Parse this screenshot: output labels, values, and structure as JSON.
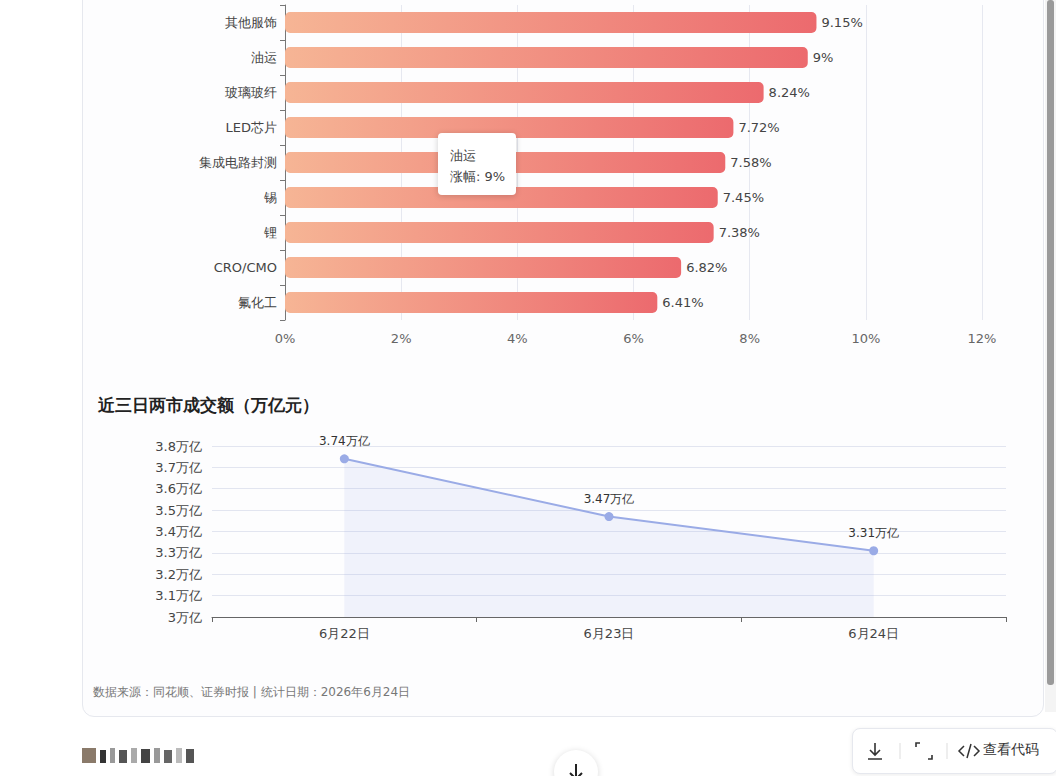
{
  "chart_data": [
    {
      "type": "bar",
      "orientation": "horizontal",
      "categories": [
        "其他服饰",
        "油运",
        "玻璃玻纤",
        "LED芯片",
        "集成电路封测",
        "锡",
        "锂",
        "CRO/CMO",
        "氟化工"
      ],
      "values": [
        9.15,
        9,
        8.24,
        7.72,
        7.58,
        7.45,
        7.38,
        6.82,
        6.41
      ],
      "value_labels": [
        "9.15%",
        "9%",
        "8.24%",
        "7.72%",
        "7.58%",
        "7.45%",
        "7.38%",
        "6.82%",
        "6.41%"
      ],
      "color": "#ec6a6e",
      "xlim": [
        0,
        12
      ],
      "xticks": [
        {
          "value": 0,
          "label": "0%"
        },
        {
          "value": 2,
          "label": "2%"
        },
        {
          "value": 4,
          "label": "4%"
        },
        {
          "value": 6,
          "label": "6%"
        },
        {
          "value": 8,
          "label": "8%"
        },
        {
          "value": 10,
          "label": "10%"
        },
        {
          "value": 12,
          "label": "12%"
        }
      ],
      "grid": true,
      "data_labels": true,
      "annotations": [
        {
          "category": "油运",
          "lines": [
            "油运",
            "涨幅: 9%"
          ]
        }
      ]
    },
    {
      "type": "line",
      "title": "近三日两市成交额（万亿元）",
      "categories": [
        "6月22日",
        "6月23日",
        "6月24日"
      ],
      "values": [
        3.74,
        3.47,
        3.31
      ],
      "value_labels": [
        "3.74万亿",
        "3.47万亿",
        "3.31万亿"
      ],
      "color": "#9aabe6",
      "marker": "circle",
      "ylim": [
        3,
        3.8
      ],
      "yticks": [
        {
          "value": 3,
          "label": "3万亿"
        },
        {
          "value": 3.1,
          "label": "3.1万亿"
        },
        {
          "value": 3.2,
          "label": "3.2万亿"
        },
        {
          "value": 3.3,
          "label": "3.3万亿"
        },
        {
          "value": 3.4,
          "label": "3.4万亿"
        },
        {
          "value": 3.5,
          "label": "3.5万亿"
        },
        {
          "value": 3.6,
          "label": "3.6万亿"
        },
        {
          "value": 3.7,
          "label": "3.7万亿"
        },
        {
          "value": 3.8,
          "label": "3.8万亿"
        }
      ],
      "grid": true,
      "data_labels": true
    }
  ],
  "footer": "数据来源：同花顺、证券时报 | 统计日期：2026年6月24日",
  "button": "查看代码"
}
